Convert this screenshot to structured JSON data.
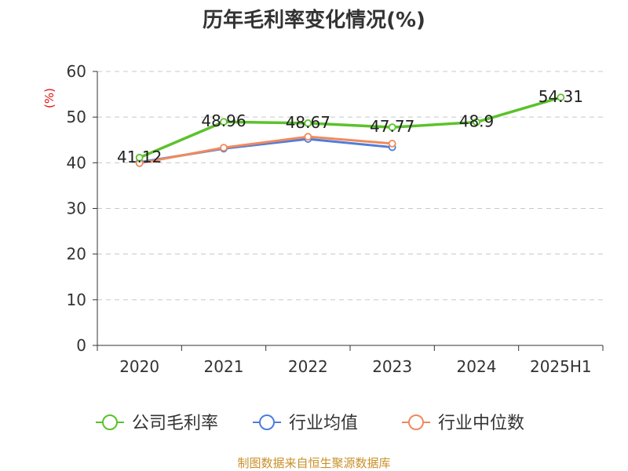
{
  "chart_data": {
    "type": "line",
    "title": "历年毛利率变化情况(%)",
    "ylabel": "(%)",
    "xlabel": "",
    "categories": [
      "2020",
      "2021",
      "2022",
      "2023",
      "2024",
      "2025H1"
    ],
    "ylim": [
      0,
      60
    ],
    "yticks": [
      0,
      10,
      20,
      30,
      40,
      50,
      60
    ],
    "grid": true,
    "legend_position": "bottom",
    "series": [
      {
        "name": "公司毛利率",
        "color": "#5bc22c",
        "values": [
          41.12,
          48.96,
          48.67,
          47.77,
          48.9,
          54.31
        ],
        "labels": [
          "41.12",
          "48.96",
          "48.67",
          "47.77",
          "48.9",
          "54.31"
        ]
      },
      {
        "name": "行业均值",
        "color": "#4f7ddb",
        "values": [
          40.1,
          43.1,
          45.2,
          43.4,
          null,
          null
        ]
      },
      {
        "name": "行业中位数",
        "color": "#f08a5d",
        "values": [
          39.9,
          43.3,
          45.7,
          44.2,
          null,
          null
        ]
      }
    ]
  },
  "footer": {
    "source": "制图数据来自恒生聚源数据库"
  }
}
